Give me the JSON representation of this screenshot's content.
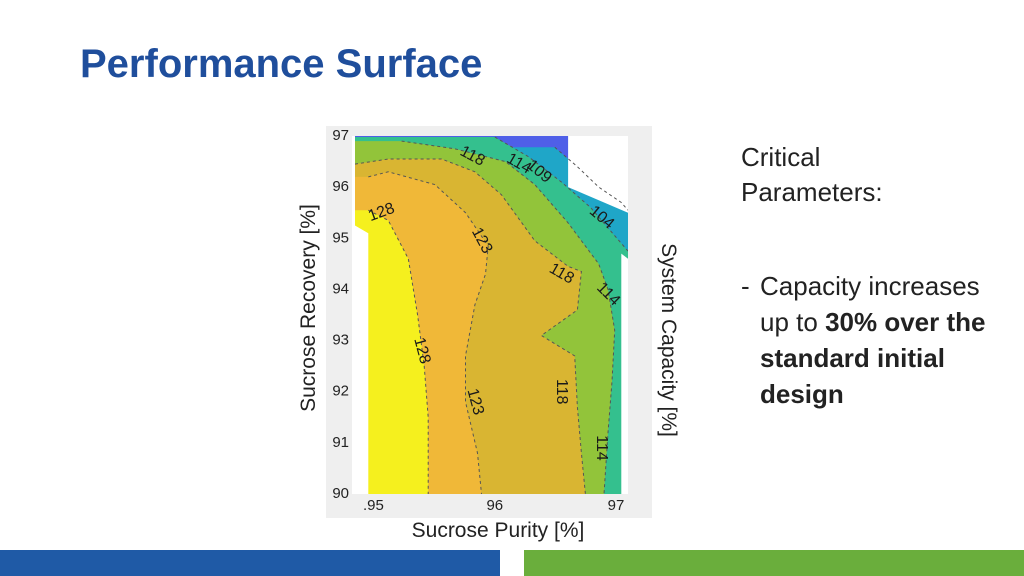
{
  "slide": {
    "title": "Performance Surface",
    "side_heading": "Critical Parameters:",
    "bullet_dash": "-",
    "bullet_text": "Capacity increases up to",
    "bullet_bold": "30% over the standard initial design"
  },
  "chart_data": {
    "type": "contour",
    "title": "",
    "xlabel": "Sucrose Purity [%]",
    "ylabel": "Sucrose Recovery [%]",
    "colorbar_label": "System Capacity [%]",
    "xlim": [
      94.95,
      97
    ],
    "ylim": [
      90,
      97
    ],
    "x_ticks": [
      ".95",
      "96",
      "97"
    ],
    "x_tick_values": [
      95,
      96,
      97
    ],
    "y_ticks": [
      "90",
      "91",
      "92",
      "93",
      "94",
      "95",
      "96",
      "97"
    ],
    "y_tick_values": [
      90,
      91,
      92,
      93,
      94,
      95,
      96,
      97
    ],
    "levels": [
      104,
      109,
      114,
      118,
      123,
      128
    ],
    "colormap": "parula",
    "level_colors": {
      "below_104": "#4f5fe8",
      "104_109": "#1fa6c8",
      "109_114": "#34c08e",
      "114_118": "#92c43a",
      "118_123": "#d9b532",
      "123_128": "#f0b838",
      "above_128": "#f5f01e"
    },
    "contour_labels": [
      {
        "text": "118",
        "x": 95.83,
        "y": 96.6
      },
      {
        "text": "114",
        "x": 96.18,
        "y": 96.45
      },
      {
        "text": "109",
        "x": 96.33,
        "y": 96.3
      },
      {
        "text": "104",
        "x": 96.8,
        "y": 95.4
      },
      {
        "text": "128",
        "x": 95.15,
        "y": 95.5
      },
      {
        "text": "123",
        "x": 95.9,
        "y": 94.95
      },
      {
        "text": "118",
        "x": 96.5,
        "y": 94.3
      },
      {
        "text": "114",
        "x": 96.85,
        "y": 93.9
      },
      {
        "text": "128",
        "x": 95.45,
        "y": 92.8
      },
      {
        "text": "123",
        "x": 95.85,
        "y": 91.8
      },
      {
        "text": "118",
        "x": 96.5,
        "y": 92
      },
      {
        "text": "114",
        "x": 96.8,
        "y": 90.9
      }
    ],
    "contours": [
      {
        "level": 104,
        "points": [
          [
            96.45,
            96.78
          ],
          [
            96.62,
            96.4
          ],
          [
            96.78,
            96
          ],
          [
            96.95,
            95.7
          ],
          [
            97,
            95.55
          ]
        ]
      },
      {
        "level": 109,
        "points": [
          [
            96.0,
            96.98
          ],
          [
            96.25,
            96.6
          ],
          [
            96.5,
            96.1
          ],
          [
            96.72,
            95.6
          ],
          [
            96.9,
            95.05
          ],
          [
            97,
            94.75
          ]
        ]
      },
      {
        "level": 114,
        "points": [
          [
            95.3,
            96.9
          ],
          [
            95.7,
            96.75
          ],
          [
            96.08,
            96.5
          ],
          [
            96.3,
            96.05
          ],
          [
            96.55,
            95.3
          ],
          [
            96.78,
            94.5
          ],
          [
            96.85,
            94.0
          ],
          [
            96.9,
            93.2
          ],
          [
            96.88,
            92.2
          ],
          [
            96.85,
            91.2
          ],
          [
            96.82,
            90.0
          ]
        ]
      },
      {
        "level": 118,
        "points": [
          [
            94.95,
            96.45
          ],
          [
            95.2,
            96.55
          ],
          [
            95.6,
            96.55
          ],
          [
            95.85,
            96.3
          ],
          [
            96.05,
            95.85
          ],
          [
            96.3,
            94.95
          ],
          [
            96.55,
            94.45
          ],
          [
            96.65,
            94.35
          ],
          [
            96.62,
            93.6
          ],
          [
            96.35,
            93.1
          ],
          [
            96.6,
            92.7
          ],
          [
            96.62,
            91.7
          ],
          [
            96.65,
            90.8
          ],
          [
            96.68,
            90.0
          ]
        ]
      },
      {
        "level": 123,
        "points": [
          [
            95.05,
            96.2
          ],
          [
            95.2,
            96.3
          ],
          [
            95.55,
            96.05
          ],
          [
            95.78,
            95.5
          ],
          [
            95.95,
            94.85
          ],
          [
            95.93,
            94.3
          ],
          [
            95.85,
            93.7
          ],
          [
            95.78,
            92.7
          ],
          [
            95.78,
            91.8
          ],
          [
            95.87,
            90.8
          ],
          [
            95.9,
            90.0
          ]
        ]
      },
      {
        "level": 128,
        "points": [
          [
            95.05,
            95.55
          ],
          [
            95.2,
            95.35
          ],
          [
            95.35,
            94.6
          ],
          [
            95.42,
            93.5
          ],
          [
            95.47,
            92.5
          ],
          [
            95.5,
            91.5
          ],
          [
            95.5,
            90.6
          ],
          [
            95.5,
            90.0
          ]
        ]
      }
    ]
  }
}
